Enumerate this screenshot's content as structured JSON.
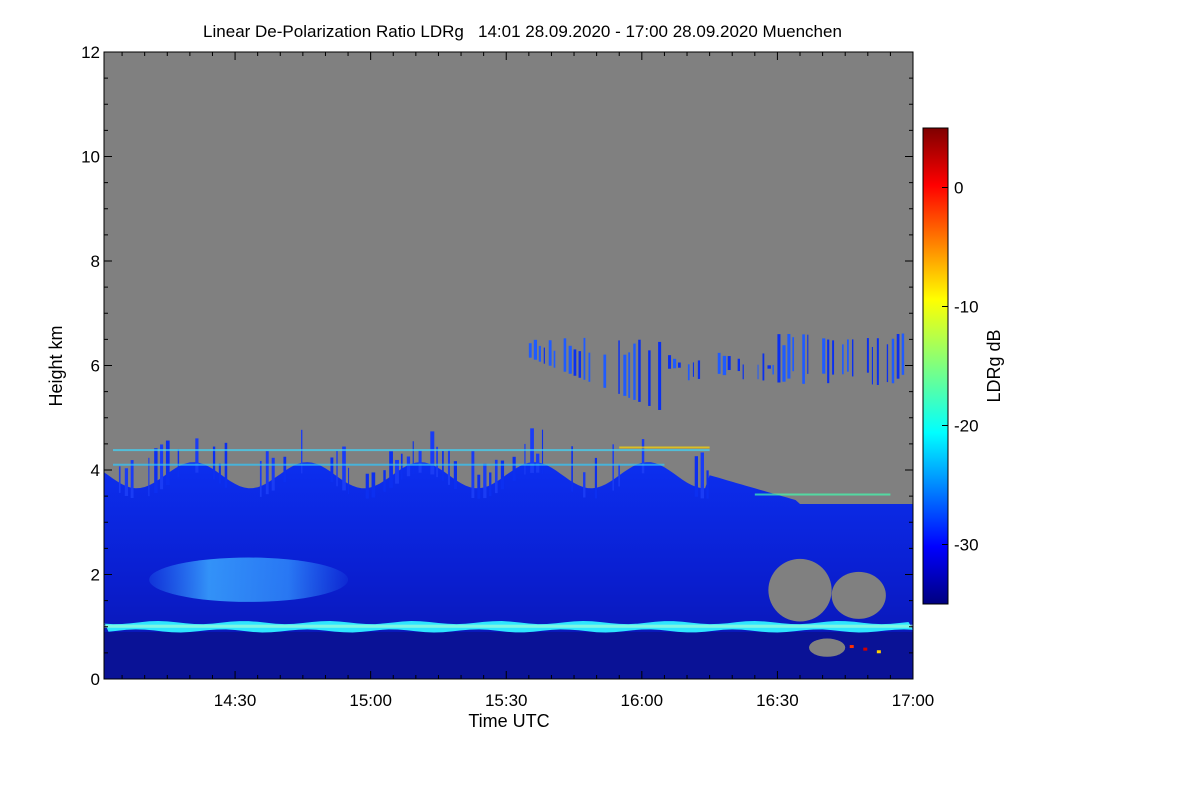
{
  "chart_data": {
    "type": "heatmap",
    "title": "Linear De-Polarization Ratio LDRg   14:01 28.09.2020 - 17:00 28.09.2020 Muenchen",
    "xlabel": "Time UTC",
    "ylabel": "Height km",
    "x_ticks": [
      "14:30",
      "15:00",
      "15:30",
      "16:00",
      "16:30",
      "17:00"
    ],
    "x_tick_minutes": [
      870,
      900,
      930,
      960,
      990,
      1020
    ],
    "xlim_minutes": [
      841,
      1020
    ],
    "y_ticks": [
      0,
      2,
      4,
      6,
      8,
      10,
      12
    ],
    "ylim": [
      0,
      12
    ],
    "colorbar": {
      "label": "LDRg dB",
      "ticks": [
        0,
        -10,
        -20,
        -30
      ],
      "range": [
        -35,
        5
      ],
      "colormap": "jet"
    },
    "no_data_color": "#808080",
    "features": [
      {
        "height_range": [
          0,
          0.9
        ],
        "ldr": -34
      },
      {
        "height_range": [
          0.9,
          1.15
        ],
        "ldr": -20
      },
      {
        "height_range": [
          1.15,
          3.9
        ],
        "ldr": -30
      },
      {
        "height_range": [
          1.5,
          2.3
        ],
        "time_range": [
          852,
          895
        ],
        "ldr": -23
      },
      {
        "height_range": [
          4.9,
          6.6
        ],
        "time_range": [
          935,
          1020
        ],
        "ldr": -30
      }
    ]
  }
}
